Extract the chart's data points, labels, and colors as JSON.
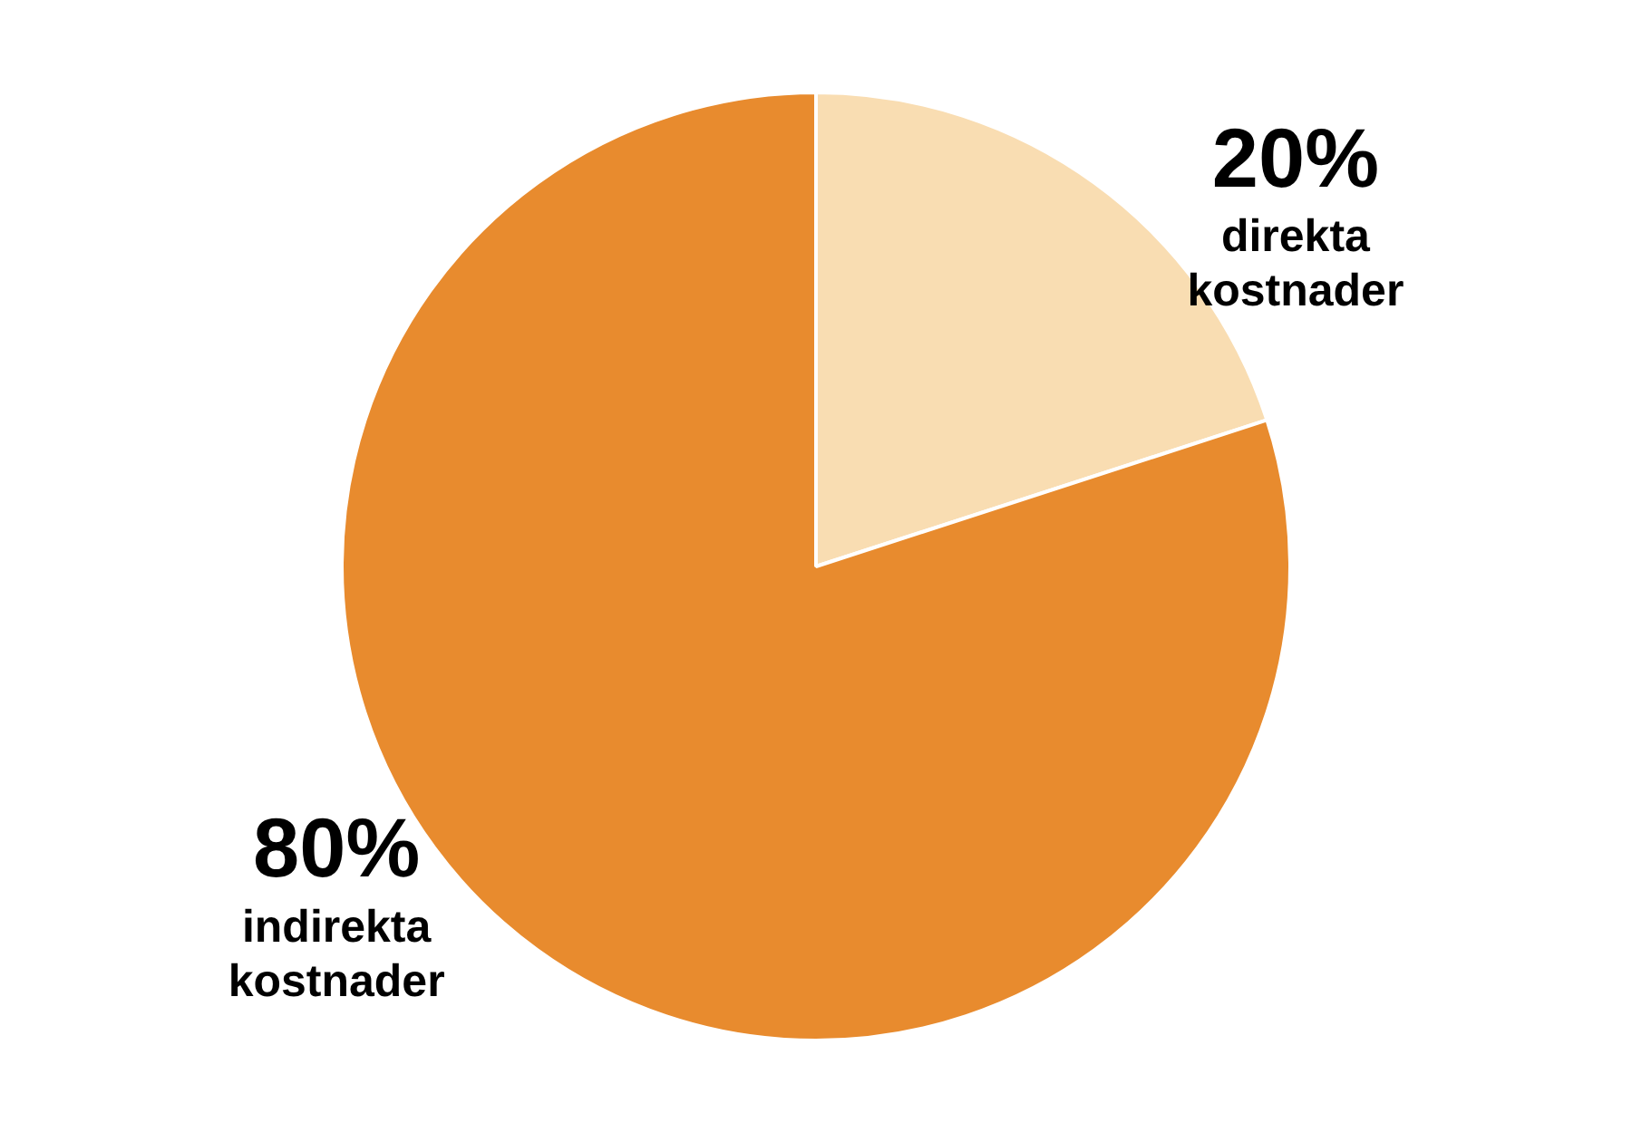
{
  "chart_data": {
    "type": "pie",
    "categories": [
      "direkta kostnader",
      "indirekta kostnader"
    ],
    "values": [
      20,
      80
    ],
    "colors": [
      "#f9ddb2",
      "#e88b2e"
    ],
    "value_labels": [
      "20%",
      "80%"
    ],
    "legend": false
  }
}
